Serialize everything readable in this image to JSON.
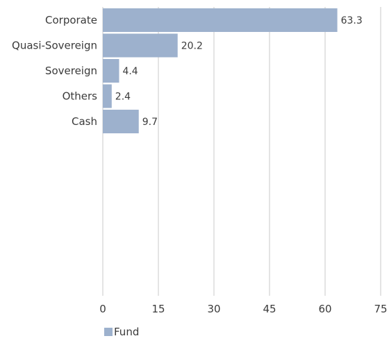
{
  "chart_data": {
    "type": "bar",
    "orientation": "horizontal",
    "categories": [
      "Corporate",
      "Quasi-Sovereign",
      "Sovereign",
      "Others",
      "Cash"
    ],
    "series": [
      {
        "name": "Fund",
        "values": [
          63.3,
          20.2,
          4.4,
          2.4,
          9.7
        ]
      }
    ],
    "xlim": [
      0,
      75
    ],
    "xticks": [
      0,
      15,
      30,
      45,
      60,
      75
    ],
    "grid": true,
    "legend_position": "bottom-left",
    "bar_color": "#9db1cd",
    "grid_color": "#c8c8c8",
    "text_color": "#3a3a3a"
  }
}
